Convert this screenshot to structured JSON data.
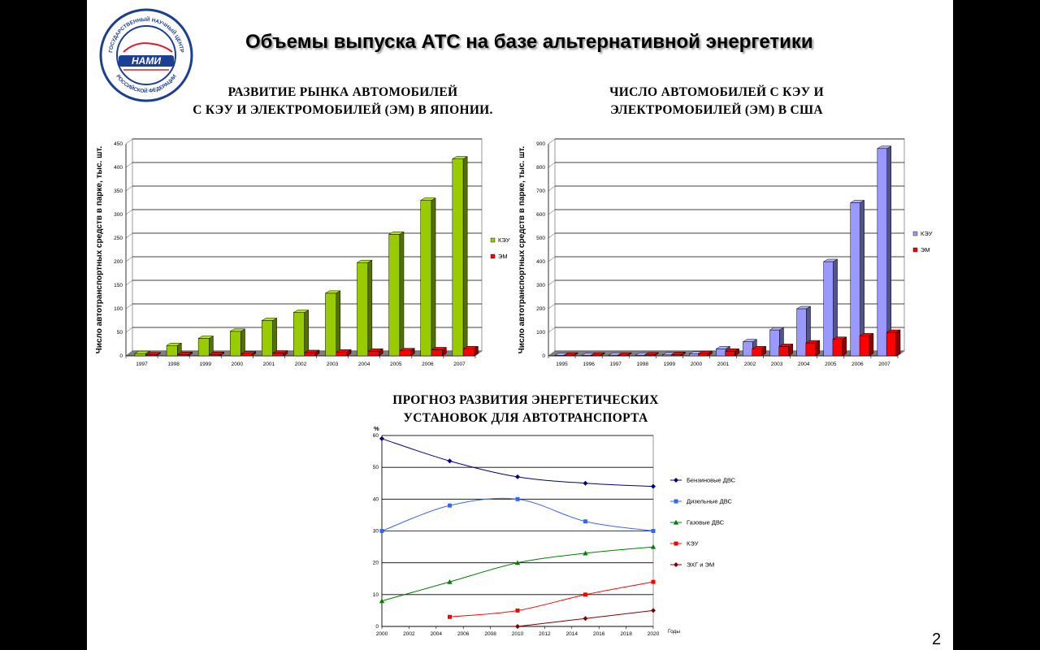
{
  "slide": {
    "title": "Объемы выпуска АТС на базе альтернативной энергетики",
    "page_number": "2"
  },
  "logo": {
    "ring_top_text": "ГОСУДАРСТВЕННЫЙ НАУЧНЫЙ ЦЕНТР",
    "ring_bottom_text": "РОССИЙСКОЙ ФЕДЕРАЦИИ",
    "name": "НАМИ",
    "colors": {
      "ring": "#1a3f94",
      "accent": "#d6202a"
    }
  },
  "chart_data": [
    {
      "id": "japan",
      "type": "bar",
      "title_line1": "РАЗВИТИЕ  РЫНКА  АВТОМОБИЛЕЙ",
      "title_line2": "С  КЭУ  И ЭЛЕКТРОМОБИЛЕЙ  (ЭМ)   В   ЯПОНИИ.",
      "ylabel": "Число автотранспортных средств в парке, тыс. шт.",
      "xlabel": "",
      "ylim": [
        0,
        450
      ],
      "yticks": [
        0,
        50,
        100,
        150,
        200,
        250,
        300,
        350,
        400,
        450
      ],
      "categories": [
        "1997",
        "1998",
        "1999",
        "2000",
        "2001",
        "2002",
        "2003",
        "2004",
        "2005",
        "2006",
        "2007"
      ],
      "series": [
        {
          "name": "КЭУ",
          "color": "#99cc00",
          "values": [
            5,
            22,
            37,
            52,
            75,
            92,
            133,
            198,
            258,
            330,
            418
          ]
        },
        {
          "name": "ЭМ",
          "color": "#ff0000",
          "values": [
            2,
            3,
            3,
            4,
            6,
            7,
            8,
            10,
            11,
            13,
            15
          ]
        }
      ],
      "grid": true,
      "legend_position": "right"
    },
    {
      "id": "usa",
      "type": "bar",
      "title_line1": "ЧИСЛО  АВТОМОБИЛЕЙ  С  КЭУ  И",
      "title_line2": "ЭЛЕКТРОМОБИЛЕЙ  (ЭМ) В  США",
      "ylabel": "Число автотранспортных средств в парке, тыс. шт.",
      "xlabel": "",
      "ylim": [
        0,
        900
      ],
      "yticks": [
        0,
        100,
        200,
        300,
        400,
        500,
        600,
        700,
        800,
        900
      ],
      "categories": [
        "1995",
        "1996",
        "1997",
        "1998",
        "1999",
        "2000",
        "2001",
        "2002",
        "2003",
        "2004",
        "2005",
        "2006",
        "2007"
      ],
      "series": [
        {
          "name": "КЭУ",
          "color": "#9999ff",
          "values": [
            2,
            2,
            3,
            3,
            4,
            8,
            30,
            60,
            110,
            200,
            400,
            650,
            880
          ]
        },
        {
          "name": "ЭМ",
          "color": "#ff0000",
          "values": [
            3,
            3,
            3,
            4,
            6,
            10,
            20,
            30,
            40,
            55,
            70,
            85,
            100
          ]
        }
      ],
      "grid": true,
      "legend_position": "right"
    },
    {
      "id": "forecast",
      "type": "line",
      "title_line1": "ПРОГНОЗ РАЗВИТИЯ  ЭНЕРГЕТИЧЕСКИХ",
      "title_line2": "УСТАНОВОК ДЛЯ  АВТОТРАНСПОРТА",
      "ylabel": "%",
      "xlabel": "Годы",
      "xlim": [
        2000,
        2020
      ],
      "ylim": [
        0,
        60
      ],
      "xticks": [
        2000,
        2002,
        2004,
        2006,
        2008,
        2010,
        2012,
        2014,
        2016,
        2018,
        2020
      ],
      "yticks": [
        0,
        10,
        20,
        30,
        40,
        50,
        60
      ],
      "series": [
        {
          "name": "Бензиновые ДВС",
          "color": "#000080",
          "marker": "diamond",
          "x": [
            2000,
            2005,
            2010,
            2015,
            2020
          ],
          "y": [
            59,
            52,
            47,
            45,
            44
          ]
        },
        {
          "name": "Дизельные ДВС",
          "color": "#3366ff",
          "marker": "square",
          "x": [
            2000,
            2005,
            2010,
            2015,
            2020
          ],
          "y": [
            30,
            38,
            40,
            33,
            30
          ]
        },
        {
          "name": "Газовые ДВС",
          "color": "#008000",
          "marker": "triangle",
          "x": [
            2000,
            2005,
            2010,
            2015,
            2020
          ],
          "y": [
            8,
            14,
            20,
            23,
            25
          ]
        },
        {
          "name": "КЭУ",
          "color": "#ff0000",
          "marker": "square",
          "x": [
            2005,
            2010,
            2015,
            2020
          ],
          "y": [
            3,
            5,
            10,
            14
          ]
        },
        {
          "name": "ЭХГ и ЭМ",
          "color": "#800000",
          "marker": "diamond",
          "x": [
            2010,
            2015,
            2020
          ],
          "y": [
            0,
            2.5,
            5
          ]
        }
      ],
      "grid": true,
      "legend_position": "right"
    }
  ]
}
